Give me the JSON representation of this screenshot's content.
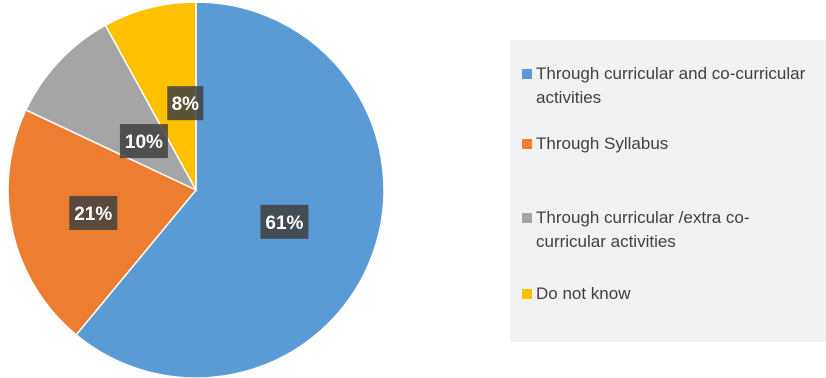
{
  "chart_data": {
    "type": "pie",
    "categories": [
      "Through curricular and co-curricular activities",
      "Through Syllabus",
      "Through curricular /extra co-curricular activities",
      "Do not know"
    ],
    "values": [
      61,
      21,
      10,
      8
    ],
    "data_labels": [
      "61%",
      "21%",
      "10%",
      "8%"
    ],
    "colors": [
      "#5b9bd5",
      "#ed7d31",
      "#a5a5a5",
      "#ffc000"
    ],
    "start_angle": "12 o'clock, clockwise",
    "legend_position": "right"
  },
  "legend": {
    "items": [
      {
        "label": "Through curricular and co-curricular activities",
        "color": "#5b9bd5"
      },
      {
        "label": "Through Syllabus",
        "color": "#ed7d31"
      },
      {
        "label": "Through curricular /extra co-curricular activities",
        "color": "#a5a5a5"
      },
      {
        "label": "Do not know",
        "color": "#ffc000"
      }
    ]
  }
}
